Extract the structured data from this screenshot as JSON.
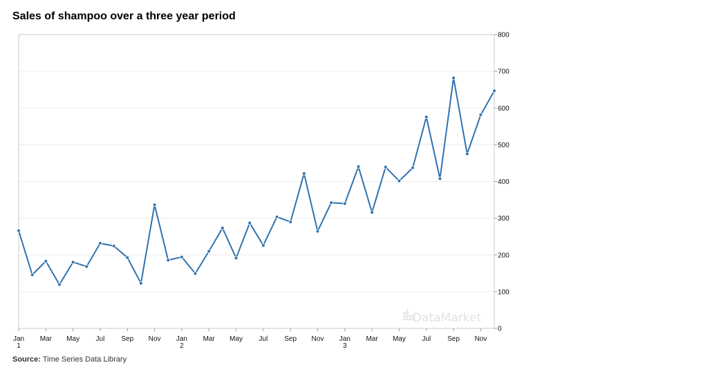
{
  "chart_data": {
    "type": "line",
    "title": "Sales of shampoo over a three year period",
    "source_label": "Source:",
    "source_text": "Time Series Data Library",
    "watermark": "DataMarket",
    "ylim": [
      0,
      800
    ],
    "y_ticks": [
      "0",
      "100",
      "200",
      "300",
      "400",
      "500",
      "600",
      "700",
      "800"
    ],
    "y_axis_side": "right",
    "grid": true,
    "x_tick_labels": [
      {
        "month": "Jan",
        "year": "1",
        "index": 0
      },
      {
        "month": "Mar",
        "year": "",
        "index": 2
      },
      {
        "month": "May",
        "year": "",
        "index": 4
      },
      {
        "month": "Jul",
        "year": "",
        "index": 6
      },
      {
        "month": "Sep",
        "year": "",
        "index": 8
      },
      {
        "month": "Nov",
        "year": "",
        "index": 10
      },
      {
        "month": "Jan",
        "year": "2",
        "index": 12
      },
      {
        "month": "Mar",
        "year": "",
        "index": 14
      },
      {
        "month": "May",
        "year": "",
        "index": 16
      },
      {
        "month": "Jul",
        "year": "",
        "index": 18
      },
      {
        "month": "Sep",
        "year": "",
        "index": 20
      },
      {
        "month": "Nov",
        "year": "",
        "index": 22
      },
      {
        "month": "Jan",
        "year": "3",
        "index": 24
      },
      {
        "month": "Mar",
        "year": "",
        "index": 26
      },
      {
        "month": "May",
        "year": "",
        "index": 28
      },
      {
        "month": "Jul",
        "year": "",
        "index": 30
      },
      {
        "month": "Sep",
        "year": "",
        "index": 32
      },
      {
        "month": "Nov",
        "year": "",
        "index": 34
      }
    ],
    "series": [
      {
        "color": "#2f72b0",
        "x": [
          "1-01",
          "1-02",
          "1-03",
          "1-04",
          "1-05",
          "1-06",
          "1-07",
          "1-08",
          "1-09",
          "1-10",
          "1-11",
          "1-12",
          "2-01",
          "2-02",
          "2-03",
          "2-04",
          "2-05",
          "2-06",
          "2-07",
          "2-08",
          "2-09",
          "2-10",
          "2-11",
          "2-12",
          "3-01",
          "3-02",
          "3-03",
          "3-04",
          "3-05",
          "3-06",
          "3-07",
          "3-08",
          "3-09",
          "3-10",
          "3-11",
          "3-12"
        ],
        "values": [
          266.0,
          145.9,
          183.1,
          119.3,
          180.3,
          168.5,
          231.8,
          224.5,
          192.8,
          122.9,
          336.5,
          185.9,
          194.3,
          149.5,
          210.1,
          273.3,
          191.4,
          287.0,
          226.0,
          303.6,
          289.9,
          421.6,
          264.5,
          342.3,
          339.7,
          440.4,
          315.9,
          439.3,
          401.3,
          437.4,
          575.5,
          407.6,
          682.0,
          475.3,
          581.3,
          646.9
        ]
      }
    ]
  }
}
